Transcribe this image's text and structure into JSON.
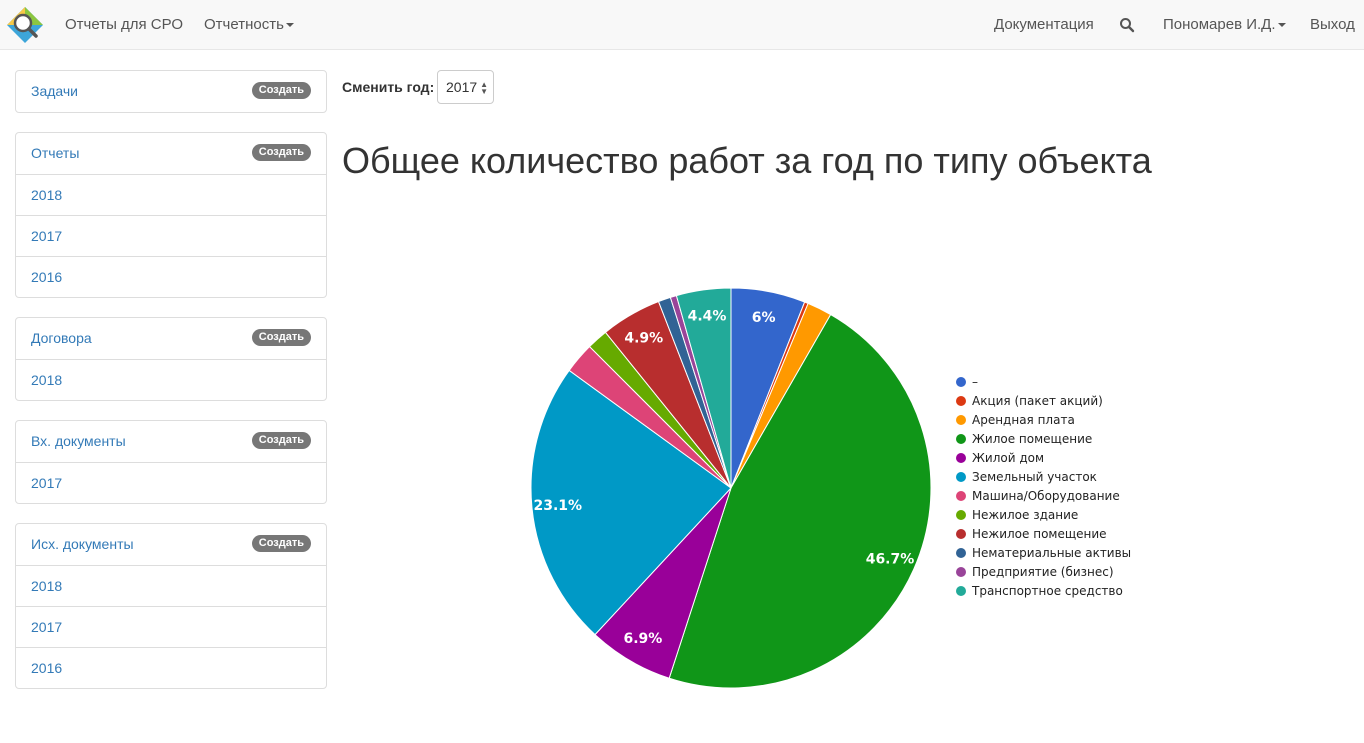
{
  "navbar": {
    "brand_link": "Отчеты для СРО",
    "reporting_menu": "Отчетность",
    "docs_link": "Документация",
    "user_menu": "Пономарев И.Д.",
    "logout_link": "Выход"
  },
  "sidebar": {
    "create_label": "Создать",
    "panels": [
      {
        "title": "Задачи",
        "items": []
      },
      {
        "title": "Отчеты",
        "items": [
          "2018",
          "2017",
          "2016"
        ]
      },
      {
        "title": "Договора",
        "items": [
          "2018"
        ]
      },
      {
        "title": "Вх. документы",
        "items": [
          "2017"
        ]
      },
      {
        "title": "Исх. документы",
        "items": [
          "2018",
          "2017",
          "2016"
        ]
      }
    ]
  },
  "year_selector": {
    "label": "Сменить год:",
    "value": "2017"
  },
  "page_title": "Общее количество работ за год по типу объекта",
  "chart_data": {
    "type": "pie",
    "title": "",
    "legend_position": "right",
    "slices": [
      {
        "label": "–",
        "value": 6.0,
        "color": "#3366cc",
        "display": "6%"
      },
      {
        "label": "Акция (пакет акций)",
        "value": 0.3,
        "color": "#dc3912",
        "display": ""
      },
      {
        "label": "Арендная плата",
        "value": 2.0,
        "color": "#ff9900",
        "display": ""
      },
      {
        "label": "Жилое помещение",
        "value": 46.7,
        "color": "#109618",
        "display": "46.7%"
      },
      {
        "label": "Жилой дом",
        "value": 6.9,
        "color": "#990099",
        "display": "6.9%"
      },
      {
        "label": "Земельный участок",
        "value": 23.1,
        "color": "#0099c6",
        "display": "23.1%"
      },
      {
        "label": "Машина/Оборудование",
        "value": 2.5,
        "color": "#dd4477",
        "display": ""
      },
      {
        "label": "Нежилое здание",
        "value": 1.7,
        "color": "#66aa00",
        "display": ""
      },
      {
        "label": "Нежилое помещение",
        "value": 4.9,
        "color": "#b82e2e",
        "display": "4.9%"
      },
      {
        "label": "Нематериальные активы",
        "value": 1.0,
        "color": "#316395",
        "display": ""
      },
      {
        "label": "Предприятие (бизнес)",
        "value": 0.5,
        "color": "#994499",
        "display": ""
      },
      {
        "label": "Транспортное средство",
        "value": 4.4,
        "color": "#22aa99",
        "display": "4.4%"
      }
    ]
  }
}
